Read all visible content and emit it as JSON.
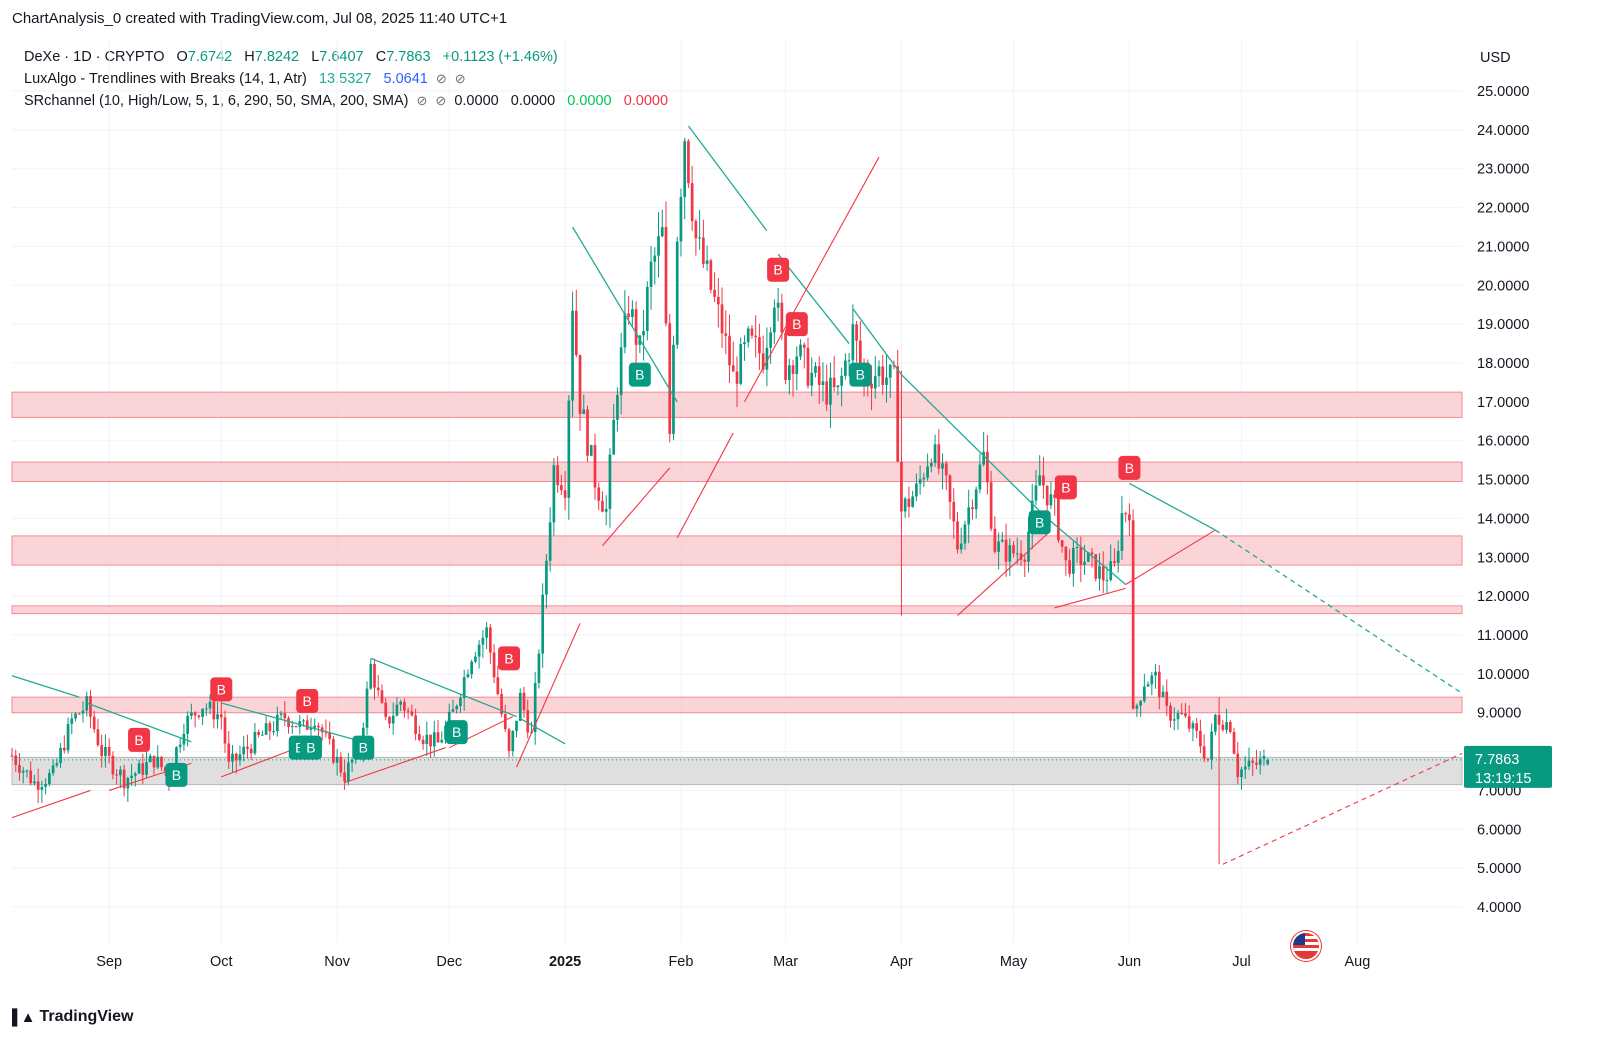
{
  "header": {
    "creator_line": "ChartAnalysis_0 created with TradingView.com, Jul 08, 2025 11:40 UTC+1"
  },
  "legend": {
    "symbol": "DeXe · 1D · CRYPTO",
    "o_label": "O",
    "o_value": "7.6742",
    "h_label": "H",
    "h_value": "7.8242",
    "l_label": "L",
    "l_value": "7.6407",
    "c_label": "C",
    "c_value": "7.7863",
    "change": "+0.1123 (+1.46%)",
    "ind1_name": "LuxAlgo - Trendlines with Breaks (14, 1, Atr)",
    "ind1_v1": "13.5327",
    "ind1_v2": "5.0641",
    "ind2_name": "SRchannel (10, High/Low, 5, 1, 6, 290, 50, SMA, 200, SMA)",
    "ind2_v1": "0.0000",
    "ind2_v2": "0.0000",
    "ind2_v3": "0.0000",
    "ind2_v4": "0.0000"
  },
  "footer": {
    "brand": "TradingView"
  },
  "colors": {
    "up": "#089981",
    "down": "#f23645",
    "zone": "#f8c5c9",
    "zone_edge": "#f28b94",
    "gray_zone": "#d9d9d9",
    "trend_green": "#22ab94",
    "trend_red": "#f23645"
  },
  "chart_data": {
    "type": "candlestick",
    "currency": "USD",
    "ylim": [
      3.5,
      25.6
    ],
    "y_ticks": [
      "4.0000",
      "5.0000",
      "6.0000",
      "7.0000",
      "8.0000",
      "9.0000",
      "10.0000",
      "11.0000",
      "12.0000",
      "13.0000",
      "14.0000",
      "15.0000",
      "16.0000",
      "17.0000",
      "18.0000",
      "19.0000",
      "20.0000",
      "21.0000",
      "22.0000",
      "23.0000",
      "24.0000",
      "25.0000"
    ],
    "x_ticks": [
      {
        "label": "Sep",
        "date": "2024-09-01",
        "bold": false
      },
      {
        "label": "Oct",
        "date": "2024-10-01",
        "bold": false
      },
      {
        "label": "Nov",
        "date": "2024-11-01",
        "bold": false
      },
      {
        "label": "Dec",
        "date": "2024-12-01",
        "bold": false
      },
      {
        "label": "2025",
        "date": "2025-01-01",
        "bold": true
      },
      {
        "label": "Feb",
        "date": "2025-02-01",
        "bold": false
      },
      {
        "label": "Mar",
        "date": "2025-03-01",
        "bold": false
      },
      {
        "label": "Apr",
        "date": "2025-04-01",
        "bold": false
      },
      {
        "label": "May",
        "date": "2025-05-01",
        "bold": false
      },
      {
        "label": "Jun",
        "date": "2025-06-01",
        "bold": false
      },
      {
        "label": "Jul",
        "date": "2025-07-01",
        "bold": false
      },
      {
        "label": "Aug",
        "date": "2025-08-01",
        "bold": false
      }
    ],
    "x_range": [
      "2024-08-06",
      "2025-08-29"
    ],
    "last_price": "7.7863",
    "countdown": "13:19:15",
    "price_path": [
      [
        "2024-08-06",
        7.9
      ],
      [
        "2024-08-12",
        7.2
      ],
      [
        "2024-08-17",
        7.4
      ],
      [
        "2024-08-22",
        8.8
      ],
      [
        "2024-08-26",
        9.2
      ],
      [
        "2024-08-30",
        8.0
      ],
      [
        "2024-09-05",
        7.3
      ],
      [
        "2024-09-09",
        7.5
      ],
      [
        "2024-09-13",
        7.8
      ],
      [
        "2024-09-17",
        7.4
      ],
      [
        "2024-09-21",
        8.7
      ],
      [
        "2024-09-26",
        9.2
      ],
      [
        "2024-10-01",
        8.9
      ],
      [
        "2024-10-03",
        7.6
      ],
      [
        "2024-10-08",
        8.1
      ],
      [
        "2024-10-13",
        8.5
      ],
      [
        "2024-10-18",
        8.9
      ],
      [
        "2024-10-23",
        8.6
      ],
      [
        "2024-10-26",
        8.9
      ],
      [
        "2024-10-30",
        8.1
      ],
      [
        "2024-11-03",
        7.4
      ],
      [
        "2024-11-07",
        8.1
      ],
      [
        "2024-11-10",
        10.2
      ],
      [
        "2024-11-14",
        8.7
      ],
      [
        "2024-11-18",
        9.3
      ],
      [
        "2024-11-24",
        8.4
      ],
      [
        "2024-11-28",
        8.2
      ],
      [
        "2024-12-02",
        9.0
      ],
      [
        "2024-12-07",
        10.5
      ],
      [
        "2024-12-11",
        11.1
      ],
      [
        "2024-12-14",
        9.5
      ],
      [
        "2024-12-17",
        7.9
      ],
      [
        "2024-12-20",
        9.4
      ],
      [
        "2024-12-23",
        8.4
      ],
      [
        "2024-12-26",
        11.8
      ],
      [
        "2024-12-29",
        15.3
      ],
      [
        "2025-01-01",
        14.9
      ],
      [
        "2025-01-03",
        19.6
      ],
      [
        "2025-01-05",
        17.0
      ],
      [
        "2025-01-09",
        15.0
      ],
      [
        "2025-01-12",
        14.2
      ],
      [
        "2025-01-15",
        17.5
      ],
      [
        "2025-01-18",
        19.5
      ],
      [
        "2025-01-21",
        18.3
      ],
      [
        "2025-01-24",
        20.4
      ],
      [
        "2025-01-27",
        21.3
      ],
      [
        "2025-01-29",
        16.2
      ],
      [
        "2025-01-31",
        21.4
      ],
      [
        "2025-02-02",
        23.9
      ],
      [
        "2025-02-05",
        21.2
      ],
      [
        "2025-02-09",
        19.9
      ],
      [
        "2025-02-12",
        18.9
      ],
      [
        "2025-02-15",
        17.6
      ],
      [
        "2025-02-19",
        18.5
      ],
      [
        "2025-02-23",
        18.2
      ],
      [
        "2025-02-26",
        19.8
      ],
      [
        "2025-03-01",
        17.9
      ],
      [
        "2025-03-04",
        18.3
      ],
      [
        "2025-03-07",
        17.8
      ],
      [
        "2025-03-11",
        17.3
      ],
      [
        "2025-03-15",
        17.2
      ],
      [
        "2025-03-19",
        18.8
      ],
      [
        "2025-03-22",
        17.6
      ],
      [
        "2025-03-26",
        17.8
      ],
      [
        "2025-03-30",
        17.5
      ],
      [
        "2025-04-01",
        14.2
      ],
      [
        "2025-04-05",
        14.7
      ],
      [
        "2025-04-09",
        15.8
      ],
      [
        "2025-04-13",
        14.8
      ],
      [
        "2025-04-16",
        13.3
      ],
      [
        "2025-04-20",
        14.6
      ],
      [
        "2025-04-23",
        15.6
      ],
      [
        "2025-04-26",
        13.3
      ],
      [
        "2025-04-30",
        13.1
      ],
      [
        "2025-05-04",
        13.2
      ],
      [
        "2025-05-08",
        15.1
      ],
      [
        "2025-05-12",
        14.2
      ],
      [
        "2025-05-15",
        12.8
      ],
      [
        "2025-05-18",
        13.0
      ],
      [
        "2025-05-21",
        12.9
      ],
      [
        "2025-05-25",
        12.5
      ],
      [
        "2025-05-28",
        12.7
      ],
      [
        "2025-05-30",
        14.1
      ],
      [
        "2025-06-01",
        14.3
      ],
      [
        "2025-06-02",
        8.9
      ],
      [
        "2025-06-05",
        9.8
      ],
      [
        "2025-06-08",
        9.9
      ],
      [
        "2025-06-11",
        9.0
      ],
      [
        "2025-06-15",
        8.9
      ],
      [
        "2025-06-19",
        8.4
      ],
      [
        "2025-06-22",
        7.8
      ],
      [
        "2025-06-24",
        8.9
      ],
      [
        "2025-06-28",
        8.7
      ],
      [
        "2025-06-30",
        7.5
      ],
      [
        "2025-07-03",
        7.6
      ],
      [
        "2025-07-08",
        7.79
      ]
    ],
    "sr_zones": [
      {
        "low": 16.6,
        "high": 17.25
      },
      {
        "low": 14.95,
        "high": 15.45
      },
      {
        "low": 12.8,
        "high": 13.55
      },
      {
        "low": 11.55,
        "high": 11.75
      },
      {
        "low": 9.0,
        "high": 9.4
      }
    ],
    "gray_zone": {
      "low": 7.15,
      "high": 7.85
    },
    "trendlines_green": [
      [
        [
          "2024-08-06",
          9.95
        ],
        [
          "2024-08-24",
          9.4
        ]
      ],
      [
        [
          "2024-08-26",
          9.25
        ],
        [
          "2024-09-23",
          8.25
        ]
      ],
      [
        [
          "2024-10-01",
          9.25
        ],
        [
          "2024-11-06",
          8.3
        ]
      ],
      [
        [
          "2024-11-10",
          10.4
        ],
        [
          "2024-12-19",
          8.9
        ]
      ],
      [
        [
          "2024-12-20",
          8.85
        ],
        [
          "2025-01-01",
          8.2
        ]
      ],
      [
        [
          "2025-01-03",
          21.5
        ],
        [
          "2025-01-31",
          17.0
        ]
      ],
      [
        [
          "2025-02-03",
          24.1
        ],
        [
          "2025-02-24",
          21.4
        ]
      ],
      [
        [
          "2025-02-27",
          20.8
        ],
        [
          "2025-03-18",
          18.5
        ]
      ],
      [
        [
          "2025-03-19",
          19.4
        ],
        [
          "2025-04-01",
          17.7
        ]
      ],
      [
        [
          "2025-04-01",
          17.7
        ],
        [
          "2025-05-10",
          14.0
        ]
      ],
      [
        [
          "2025-05-10",
          14.0
        ],
        [
          "2025-05-31",
          12.3
        ]
      ],
      [
        [
          "2025-06-01",
          14.9
        ],
        [
          "2025-06-24",
          13.7
        ]
      ]
    ],
    "trendline_green_dashed": [
      [
        "2025-06-24",
        13.7
      ],
      [
        "2025-08-29",
        9.5
      ]
    ],
    "trendlines_red": [
      [
        [
          "2024-08-06",
          6.3
        ],
        [
          "2024-08-27",
          7.0
        ]
      ],
      [
        [
          "2024-09-01",
          7.0
        ],
        [
          "2024-09-23",
          7.7
        ]
      ],
      [
        [
          "2024-10-01",
          7.35
        ],
        [
          "2024-10-27",
          8.3
        ]
      ],
      [
        [
          "2024-11-03",
          7.2
        ],
        [
          "2024-11-30",
          8.1
        ]
      ],
      [
        [
          "2024-12-01",
          8.1
        ],
        [
          "2024-12-18",
          8.9
        ]
      ],
      [
        [
          "2024-12-19",
          7.6
        ],
        [
          "2025-01-05",
          11.3
        ]
      ],
      [
        [
          "2025-01-11",
          13.3
        ],
        [
          "2025-01-29",
          15.3
        ]
      ],
      [
        [
          "2025-01-31",
          13.5
        ],
        [
          "2025-02-15",
          16.2
        ]
      ],
      [
        [
          "2025-02-18",
          17.0
        ],
        [
          "2025-03-26",
          23.3
        ]
      ],
      [
        [
          "2025-04-16",
          11.5
        ],
        [
          "2025-05-10",
          13.6
        ]
      ],
      [
        [
          "2025-05-12",
          11.7
        ],
        [
          "2025-05-31",
          12.2
        ]
      ],
      [
        [
          "2025-05-31",
          12.3
        ],
        [
          "2025-06-24",
          13.7
        ]
      ]
    ],
    "trendline_red_dashed": [
      [
        "2025-06-26",
        5.1
      ],
      [
        "2025-08-29",
        7.95
      ]
    ],
    "wick_spikes": [
      {
        "date": "2025-06-25",
        "low": 5.1,
        "high": 9.4,
        "up": true
      },
      {
        "date": "2025-04-01",
        "low": 11.5,
        "high": 17.8,
        "up": false
      }
    ],
    "signals": [
      {
        "text": "B",
        "type": "sell",
        "date": "2024-09-09",
        "price": 8.3
      },
      {
        "text": "B",
        "type": "buy",
        "date": "2024-09-19",
        "price": 7.4
      },
      {
        "text": "B",
        "type": "sell",
        "date": "2024-10-01",
        "price": 9.6
      },
      {
        "text": "B",
        "type": "buy",
        "date": "2024-10-22",
        "price": 8.1
      },
      {
        "text": "B",
        "type": "sell",
        "date": "2024-10-24",
        "price": 9.3
      },
      {
        "text": "B",
        "type": "buy",
        "date": "2024-10-25",
        "price": 8.1
      },
      {
        "text": "B",
        "type": "buy",
        "date": "2024-11-08",
        "price": 8.1
      },
      {
        "text": "B",
        "type": "buy",
        "date": "2024-12-03",
        "price": 8.5
      },
      {
        "text": "B",
        "type": "sell",
        "date": "2024-12-17",
        "price": 10.4
      },
      {
        "text": "B",
        "type": "buy",
        "date": "2025-01-21",
        "price": 17.7
      },
      {
        "text": "B",
        "type": "sell",
        "date": "2025-02-27",
        "price": 20.4
      },
      {
        "text": "B",
        "type": "sell",
        "date": "2025-03-04",
        "price": 19.0
      },
      {
        "text": "B",
        "type": "buy",
        "date": "2025-03-21",
        "price": 17.7
      },
      {
        "text": "B",
        "type": "buy",
        "date": "2025-05-08",
        "price": 13.9
      },
      {
        "text": "B",
        "type": "sell",
        "date": "2025-05-15",
        "price": 14.8
      },
      {
        "text": "B",
        "type": "sell",
        "date": "2025-06-01",
        "price": 15.3
      }
    ]
  }
}
